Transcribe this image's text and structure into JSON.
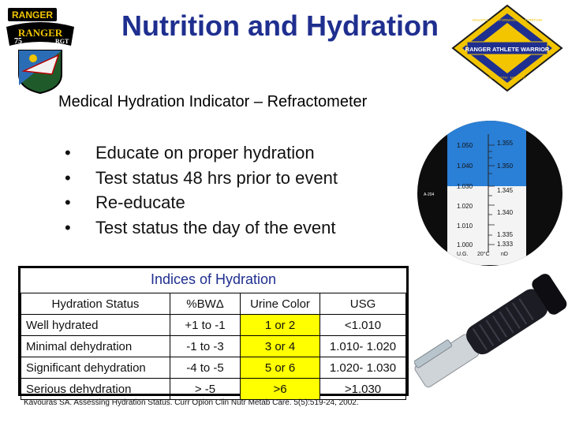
{
  "title": "Nutrition and Hydration",
  "subtitle": "Medical Hydration Indicator – Refractometer",
  "bullets": [
    "Educate on proper hydration",
    "Test status 48 hrs prior to event",
    "Re-educate",
    "Test status the day of the event"
  ],
  "bullet_symbol": "•",
  "logos": {
    "ranger_tab": "RANGER",
    "ranger_scroll": "RANGER",
    "ranger_numbers": [
      "75",
      "RGT"
    ],
    "raw_center": "RANGER ATHLETE WARRIOR",
    "raw_ring_top": "HOLISTIC · PERFORMANCE · NUTRITION",
    "raw_ring_bottom": "STRENGTH · MOBILITY"
  },
  "refractometer_scale": {
    "left": [
      "1.050",
      "1.040",
      "1.030",
      "1.020",
      "1.010",
      "1.000"
    ],
    "right": [
      "1.355",
      "1.350",
      "1.345",
      "1.340",
      "1.335",
      "1.333"
    ],
    "side_label": "A-204",
    "bottom_left": "U.G.",
    "bottom_mid": "20°C",
    "bottom_right": "nD"
  },
  "table": {
    "caption": "Indices of Hydration",
    "headers": [
      "Hydration Status",
      "%BWΔ",
      "Urine Color",
      "USG"
    ],
    "rows": [
      [
        "Well hydrated",
        "+1 to -1",
        "1 or 2",
        "<1.010"
      ],
      [
        "Minimal dehydration",
        "-1 to -3",
        "3 or 4",
        "1.010- 1.020"
      ],
      [
        "Significant dehydration",
        "-4 to -5",
        "5 or 6",
        "1.020- 1.030"
      ],
      [
        "Serious dehydration",
        "> -5",
        ">6",
        ">1.030"
      ]
    ],
    "highlight_color": "#ffff00"
  },
  "citation": "Kavouras SA. Assessing Hydration Status. Curr Opion Clin Nutr Metab Care. 5(5):519-24, 2002.",
  "colors": {
    "title": "#1f2f8f",
    "caption": "#1f2f8f"
  }
}
